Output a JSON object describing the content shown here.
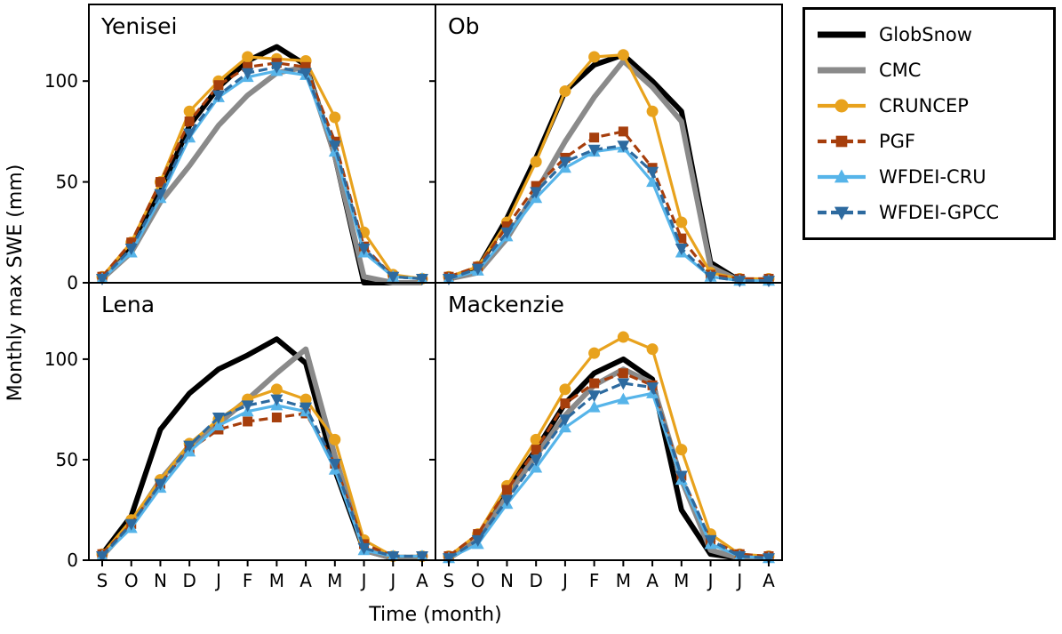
{
  "chart_data": {
    "type": "line",
    "xlabel": "Time (month)",
    "ylabel": "Monthly max SWE (mm)",
    "categories": [
      "S",
      "O",
      "N",
      "D",
      "J",
      "F",
      "M",
      "A",
      "M",
      "J",
      "J",
      "A"
    ],
    "yticks": [
      0,
      50,
      100
    ],
    "ylim": [
      0,
      138
    ],
    "grid": false,
    "legend_position": "outside-right-top",
    "panels": [
      {
        "title": "Yenisei",
        "series": [
          {
            "name": "GlobSnow",
            "values": [
              2,
              18,
              45,
              78,
              97,
              110,
              117,
              108,
              63,
              0,
              0,
              0
            ]
          },
          {
            "name": "CMC",
            "values": [
              2,
              15,
              40,
              58,
              78,
              93,
              104,
              107,
              63,
              3,
              0,
              0
            ]
          },
          {
            "name": "CRUNCEP",
            "values": [
              3,
              20,
              50,
              85,
              100,
              112,
              111,
              110,
              82,
              25,
              4,
              2
            ]
          },
          {
            "name": "PGF",
            "values": [
              3,
              20,
              50,
              80,
              98,
              107,
              109,
              107,
              70,
              18,
              3,
              2
            ]
          },
          {
            "name": "WFDEI-CRU",
            "values": [
              2,
              15,
              42,
              72,
              92,
              102,
              105,
              103,
              65,
              15,
              3,
              2
            ]
          },
          {
            "name": "WFDEI-GPCC",
            "values": [
              2,
              17,
              44,
              74,
              93,
              104,
              107,
              104,
              68,
              17,
              3,
              2
            ]
          }
        ]
      },
      {
        "title": "Ob",
        "series": [
          {
            "name": "GlobSnow",
            "values": [
              2,
              7,
              32,
              62,
              95,
              108,
              113,
              100,
              85,
              10,
              1,
              1
            ]
          },
          {
            "name": "CMC",
            "values": [
              2,
              5,
              22,
              45,
              70,
              92,
              110,
              97,
              80,
              8,
              1,
              1
            ]
          },
          {
            "name": "CRUNCEP",
            "values": [
              3,
              8,
              30,
              60,
              95,
              112,
              113,
              85,
              30,
              5,
              2,
              2
            ]
          },
          {
            "name": "PGF",
            "values": [
              3,
              8,
              28,
              48,
              62,
              72,
              75,
              57,
              22,
              4,
              2,
              2
            ]
          },
          {
            "name": "WFDEI-CRU",
            "values": [
              2,
              6,
              23,
              42,
              57,
              65,
              67,
              50,
              15,
              3,
              1,
              1
            ]
          },
          {
            "name": "WFDEI-GPCC",
            "values": [
              2,
              7,
              25,
              45,
              60,
              66,
              68,
              55,
              17,
              3,
              1,
              1
            ]
          }
        ]
      },
      {
        "title": "Lena",
        "series": [
          {
            "name": "GlobSnow",
            "values": [
              3,
              22,
              65,
              83,
              95,
              102,
              110,
              98,
              45,
              5,
              1,
              1
            ]
          },
          {
            "name": "CMC",
            "values": [
              2,
              18,
              40,
              57,
              68,
              80,
              93,
              105,
              52,
              5,
              1,
              1
            ]
          },
          {
            "name": "CRUNCEP",
            "values": [
              3,
              20,
              40,
              58,
              70,
              80,
              85,
              80,
              60,
              10,
              2,
              2
            ]
          },
          {
            "name": "PGF",
            "values": [
              3,
              18,
              38,
              55,
              65,
              69,
              71,
              73,
              48,
              8,
              2,
              2
            ]
          },
          {
            "name": "WFDEI-CRU",
            "values": [
              2,
              16,
              36,
              54,
              67,
              74,
              77,
              74,
              45,
              5,
              2,
              2
            ]
          },
          {
            "name": "WFDEI-GPCC",
            "values": [
              2,
              18,
              38,
              57,
              71,
              77,
              80,
              76,
              48,
              6,
              2,
              2
            ]
          }
        ]
      },
      {
        "title": "Mackenzie",
        "series": [
          {
            "name": "GlobSnow",
            "values": [
              1,
              10,
              35,
              55,
              78,
              93,
              100,
              90,
              25,
              3,
              1,
              1
            ]
          },
          {
            "name": "CMC",
            "values": [
              1,
              10,
              32,
              52,
              72,
              87,
              95,
              88,
              40,
              5,
              1,
              1
            ]
          },
          {
            "name": "CRUNCEP",
            "values": [
              2,
              13,
              37,
              60,
              85,
              103,
              111,
              105,
              55,
              13,
              3,
              2
            ]
          },
          {
            "name": "PGF",
            "values": [
              2,
              13,
              35,
              55,
              78,
              88,
              93,
              87,
              42,
              10,
              3,
              2
            ]
          },
          {
            "name": "WFDEI-CRU",
            "values": [
              1,
              8,
              28,
              46,
              66,
              76,
              80,
              83,
              40,
              8,
              2,
              1
            ]
          },
          {
            "name": "WFDEI-GPCC",
            "values": [
              1,
              10,
              30,
              50,
              70,
              82,
              88,
              86,
              42,
              10,
              2,
              1
            ]
          }
        ]
      }
    ]
  },
  "legend": {
    "items": [
      {
        "label": "GlobSnow",
        "color": "#000000",
        "dash": "",
        "marker": "none",
        "width": 6
      },
      {
        "label": "CMC",
        "color": "#8a8a8a",
        "dash": "",
        "marker": "none",
        "width": 6
      },
      {
        "label": "CRUNCEP",
        "color": "#e8a21d",
        "dash": "",
        "marker": "circle",
        "width": 3.2
      },
      {
        "label": "PGF",
        "color": "#a63e0c",
        "dash": "10 5",
        "marker": "square",
        "width": 3.2
      },
      {
        "label": "WFDEI-CRU",
        "color": "#56b4e9",
        "dash": "",
        "marker": "triangle-up",
        "width": 3.2
      },
      {
        "label": "WFDEI-GPCC",
        "color": "#2d6a9f",
        "dash": "10 5",
        "marker": "triangle-down",
        "width": 3.2
      }
    ]
  }
}
